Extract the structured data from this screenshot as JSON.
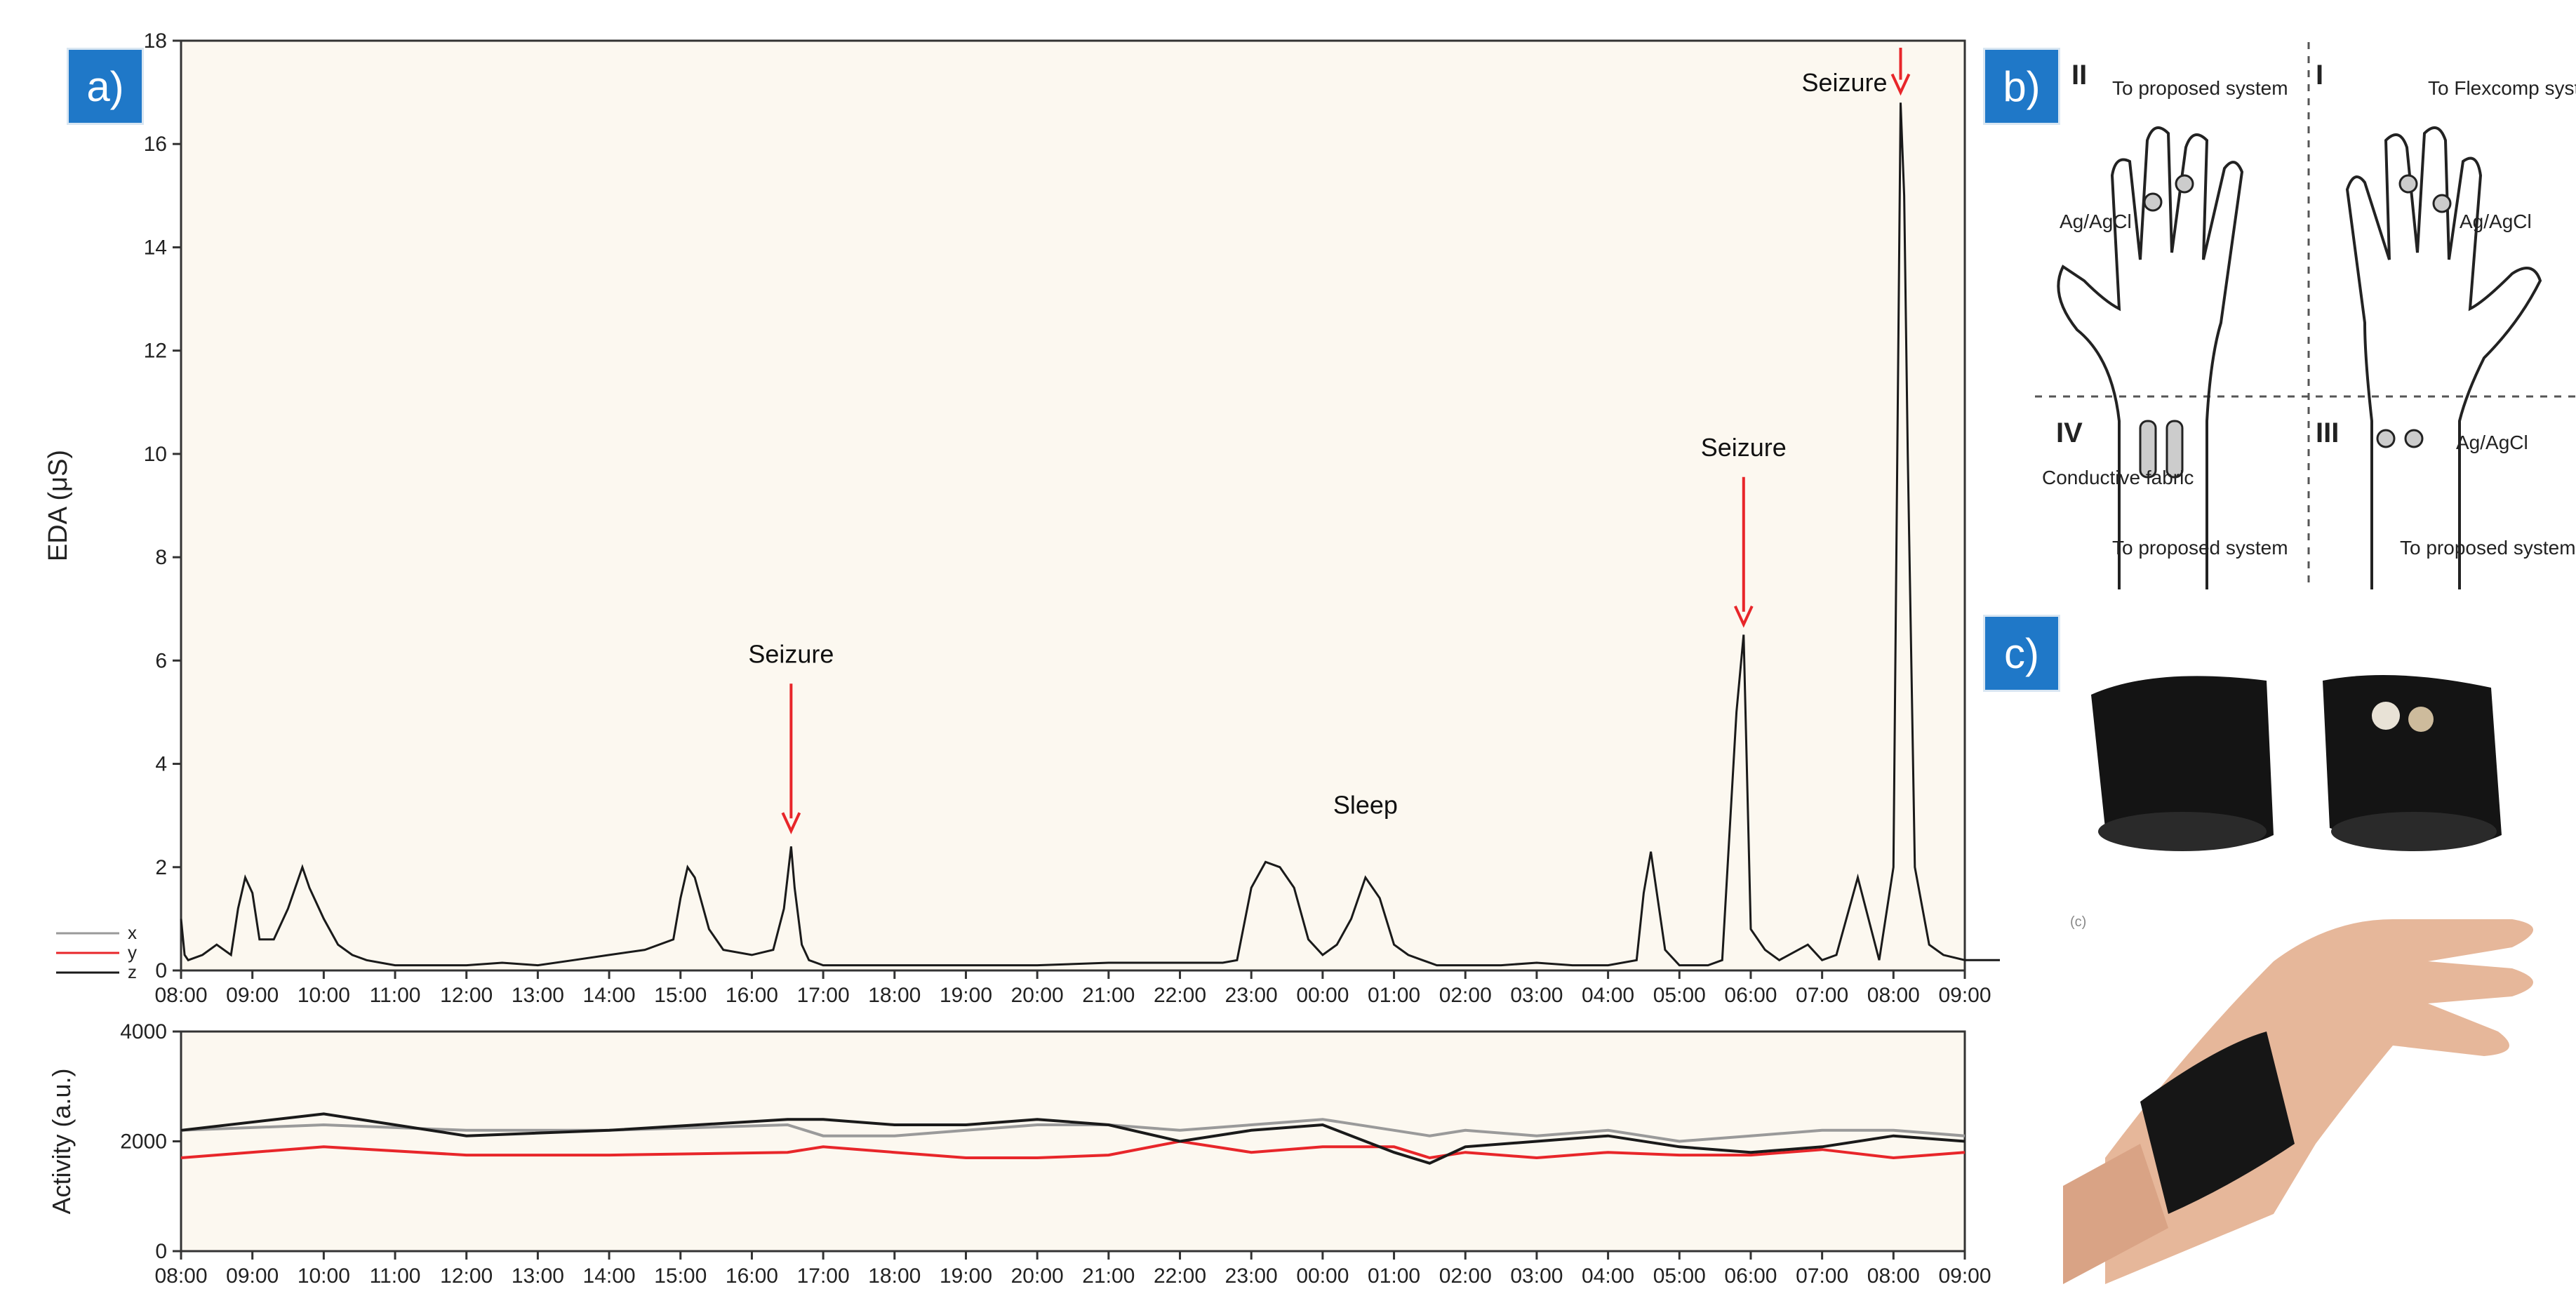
{
  "panels": {
    "a_label": "a)",
    "b_label": "b)",
    "c_label": "c)"
  },
  "colors": {
    "badge": "#1f78c8",
    "plot_bg": "#fcf8f0",
    "x_series": "#9a9a9a",
    "y_series": "#e8262a",
    "z_series": "#1a1a1a",
    "arrow": "#e8262a"
  },
  "chart_data": [
    {
      "type": "line",
      "title": "",
      "xlabel": "",
      "ylabel": "EDA (μS)",
      "ylim": [
        0,
        18
      ],
      "yticks": [
        "0",
        "2",
        "4",
        "6",
        "8",
        "10",
        "12",
        "14",
        "16",
        "18"
      ],
      "xticks": [
        "08:00",
        "09:00",
        "10:00",
        "11:00",
        "12:00",
        "13:00",
        "14:00",
        "15:00",
        "16:00",
        "17:00",
        "18:00",
        "19:00",
        "20:00",
        "21:00",
        "22:00",
        "23:00",
        "00:00",
        "01:00",
        "02:00",
        "03:00",
        "04:00",
        "05:00",
        "06:00",
        "07:00",
        "08:00",
        "09:00"
      ],
      "grid": false,
      "series": [
        {
          "name": "EDA",
          "x_hours": [
            0,
            0.05,
            0.1,
            0.3,
            0.5,
            0.7,
            0.8,
            0.9,
            1.0,
            1.1,
            1.3,
            1.5,
            1.7,
            1.8,
            2.0,
            2.2,
            2.4,
            2.6,
            2.8,
            3.0,
            3.5,
            4.0,
            4.5,
            5.0,
            5.5,
            6.0,
            6.5,
            6.9,
            7.0,
            7.1,
            7.2,
            7.4,
            7.6,
            8.0,
            8.3,
            8.45,
            8.55,
            8.6,
            8.7,
            8.8,
            9.0,
            10.0,
            11.0,
            12.0,
            13.0,
            14.0,
            14.6,
            14.8,
            15.0,
            15.2,
            15.4,
            15.6,
            15.8,
            16.0,
            16.2,
            16.4,
            16.6,
            16.8,
            17.0,
            17.2,
            17.4,
            17.6,
            18.0,
            18.5,
            19.0,
            19.5,
            20.0,
            20.4,
            20.5,
            20.6,
            20.8,
            21.0,
            21.4,
            21.6,
            21.8,
            21.9,
            22.0,
            22.2,
            22.4,
            22.8,
            23.0,
            23.2,
            23.5,
            23.8,
            24.0,
            24.1,
            24.15,
            24.2,
            24.3,
            24.5,
            24.7,
            25.0,
            25.5
          ],
          "values": [
            1.0,
            0.3,
            0.2,
            0.3,
            0.5,
            0.3,
            1.2,
            1.8,
            1.5,
            0.6,
            0.6,
            1.2,
            2.0,
            1.6,
            1.0,
            0.5,
            0.3,
            0.2,
            0.15,
            0.1,
            0.1,
            0.1,
            0.15,
            0.1,
            0.2,
            0.3,
            0.4,
            0.6,
            1.4,
            2.0,
            1.8,
            0.8,
            0.4,
            0.3,
            0.4,
            1.2,
            2.4,
            1.6,
            0.5,
            0.2,
            0.1,
            0.1,
            0.1,
            0.1,
            0.15,
            0.15,
            0.15,
            0.2,
            1.6,
            2.1,
            2.0,
            1.6,
            0.6,
            0.3,
            0.5,
            1.0,
            1.8,
            1.4,
            0.5,
            0.3,
            0.2,
            0.1,
            0.1,
            0.1,
            0.15,
            0.1,
            0.1,
            0.2,
            1.5,
            2.3,
            0.4,
            0.1,
            0.1,
            0.2,
            5.0,
            6.5,
            0.8,
            0.4,
            0.2,
            0.5,
            0.2,
            0.3,
            1.8,
            0.2,
            2.0,
            16.8,
            15.0,
            10.0,
            2.0,
            0.5,
            0.3,
            0.2,
            0.2
          ]
        }
      ],
      "annotations": [
        {
          "text": "Seizure",
          "x_hour": 8.55,
          "y": 2.7
        },
        {
          "text": "Sleep",
          "x_hour": 16.6,
          "y": 2.9
        },
        {
          "text": "Seizure",
          "x_hour": 21.9,
          "y": 6.7
        },
        {
          "text": "Seizure",
          "x_hour": 24.1,
          "y": 17.0
        }
      ],
      "legend": {
        "position": "bottom-left",
        "entries": [
          "x",
          "y",
          "z"
        ]
      }
    },
    {
      "type": "line",
      "title": "",
      "xlabel": "",
      "ylabel": "Activity (a.u.)",
      "ylim": [
        0,
        4000
      ],
      "yticks": [
        "0",
        "2000",
        "4000"
      ],
      "xticks": [
        "08:00",
        "09:00",
        "10:00",
        "11:00",
        "12:00",
        "13:00",
        "14:00",
        "15:00",
        "16:00",
        "17:00",
        "18:00",
        "19:00",
        "20:00",
        "21:00",
        "22:00",
        "23:00",
        "00:00",
        "01:00",
        "02:00",
        "03:00",
        "04:00",
        "05:00",
        "06:00",
        "07:00",
        "08:00",
        "09:00"
      ],
      "grid": false,
      "series": [
        {
          "name": "x",
          "x_hours": [
            0,
            2,
            4,
            6,
            8.5,
            9,
            10,
            11,
            12,
            13,
            14,
            15,
            16,
            17,
            17.5,
            18,
            19,
            20,
            21,
            22,
            23,
            24,
            25
          ],
          "values": [
            2200,
            2300,
            2200,
            2200,
            2300,
            2100,
            2100,
            2200,
            2300,
            2300,
            2200,
            2300,
            2400,
            2200,
            2100,
            2200,
            2100,
            2200,
            2000,
            2100,
            2200,
            2200,
            2100
          ]
        },
        {
          "name": "y",
          "x_hours": [
            0,
            2,
            4,
            6,
            8.5,
            9,
            10,
            11,
            12,
            13,
            14,
            15,
            16,
            17,
            17.5,
            18,
            19,
            20,
            21,
            22,
            23,
            24,
            25
          ],
          "values": [
            1700,
            1900,
            1750,
            1750,
            1800,
            1900,
            1800,
            1700,
            1700,
            1750,
            2000,
            1800,
            1900,
            1900,
            1700,
            1800,
            1700,
            1800,
            1750,
            1750,
            1850,
            1700,
            1800
          ]
        },
        {
          "name": "z",
          "x_hours": [
            0,
            2,
            4,
            6,
            8.5,
            9,
            10,
            11,
            12,
            13,
            14,
            15,
            16,
            17,
            17.5,
            18,
            19,
            20,
            21,
            22,
            23,
            24,
            25
          ],
          "values": [
            2200,
            2500,
            2100,
            2200,
            2400,
            2400,
            2300,
            2300,
            2400,
            2300,
            2000,
            2200,
            2300,
            1800,
            1600,
            1900,
            2000,
            2100,
            1900,
            1800,
            1900,
            2100,
            2000
          ]
        }
      ]
    }
  ],
  "diagram_b": {
    "quadrants": [
      "II",
      "I",
      "IV",
      "III"
    ],
    "labels": {
      "q2_top": "To proposed system",
      "q1_top": "To Flexcomp system",
      "q2_electrode": "Ag/AgCl",
      "q1_electrode": "Ag/AgCl",
      "q4_fabric": "Conductive fabric",
      "q3_electrode": "Ag/AgCl",
      "q4_bottom": "To proposed system",
      "q3_bottom": "To proposed system"
    }
  },
  "photo_c": {
    "caption_small": "(c)"
  }
}
